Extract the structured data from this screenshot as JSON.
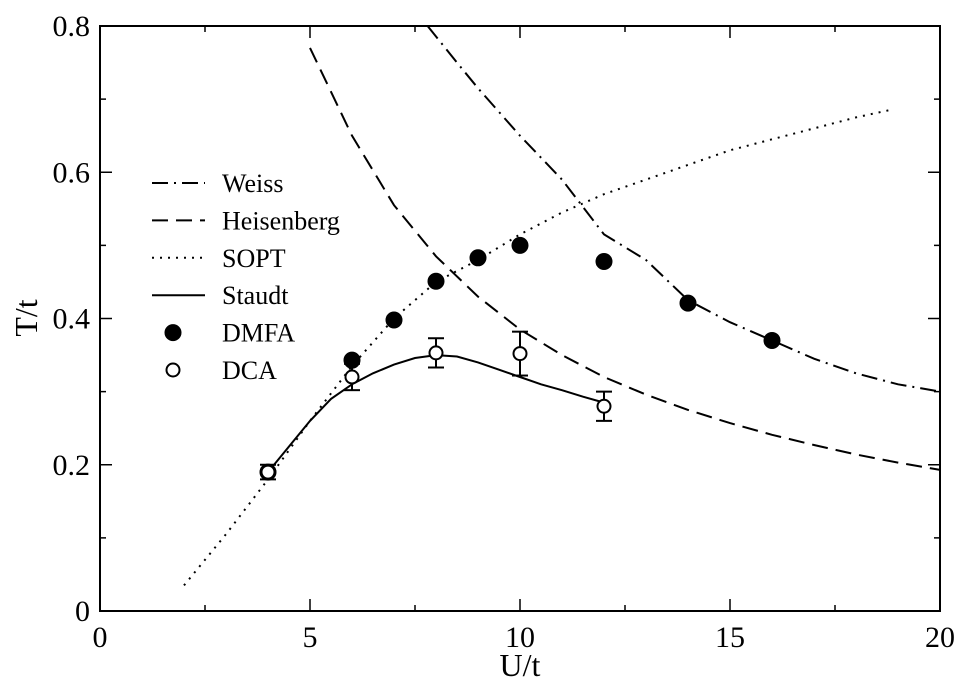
{
  "chart_data": {
    "type": "scatter",
    "xlabel": "U/t",
    "ylabel": "T/t",
    "xlim": [
      0,
      20
    ],
    "ylim": [
      0,
      0.8
    ],
    "x_ticks": [
      0,
      5,
      10,
      15,
      20
    ],
    "y_ticks": [
      0,
      0.2,
      0.4,
      0.6,
      0.8
    ],
    "x_tick_labels": [
      "0",
      "5",
      "10",
      "15",
      "20"
    ],
    "y_tick_labels": [
      "0",
      "0.2",
      "0.4",
      "0.6",
      "0.8"
    ],
    "grid": false,
    "legend_position": "left",
    "series": [
      {
        "name": "Weiss",
        "kind": "line",
        "dash": "dash-dot",
        "x": [
          7.8,
          8.5,
          9,
          10,
          11,
          12,
          13,
          14,
          15,
          16,
          17,
          18,
          19,
          20
        ],
        "y": [
          0.8,
          0.75,
          0.715,
          0.65,
          0.59,
          0.515,
          0.48,
          0.425,
          0.395,
          0.37,
          0.345,
          0.325,
          0.31,
          0.3
        ]
      },
      {
        "name": "Heisenberg",
        "kind": "line",
        "dash": "dashed",
        "x": [
          5,
          6,
          7,
          8,
          9,
          10,
          11,
          12,
          13,
          14,
          15,
          16,
          17,
          18,
          19,
          20
        ],
        "y": [
          0.77,
          0.65,
          0.555,
          0.485,
          0.43,
          0.385,
          0.35,
          0.32,
          0.296,
          0.275,
          0.257,
          0.241,
          0.227,
          0.214,
          0.203,
          0.193
        ]
      },
      {
        "name": "SOPT",
        "kind": "line",
        "dash": "dotted",
        "x": [
          2,
          3,
          4,
          5,
          6,
          7,
          8,
          9,
          10,
          11,
          12,
          13,
          14,
          15,
          16,
          17,
          18,
          18.8
        ],
        "y": [
          0.035,
          0.105,
          0.18,
          0.26,
          0.335,
          0.4,
          0.45,
          0.48,
          0.515,
          0.545,
          0.57,
          0.59,
          0.61,
          0.63,
          0.645,
          0.66,
          0.675,
          0.685
        ]
      },
      {
        "name": "Staudt",
        "kind": "line",
        "dash": "solid",
        "x": [
          4,
          4.5,
          5,
          5.5,
          6,
          6.5,
          7,
          7.5,
          8,
          8.5,
          9,
          9.5,
          10,
          10.5,
          11,
          11.5,
          12
        ],
        "y": [
          0.19,
          0.225,
          0.26,
          0.29,
          0.31,
          0.325,
          0.337,
          0.346,
          0.35,
          0.348,
          0.34,
          0.33,
          0.32,
          0.31,
          0.302,
          0.293,
          0.285
        ]
      },
      {
        "name": "DMFA",
        "kind": "marker",
        "marker": "filled-circle",
        "x": [
          4,
          6,
          7,
          8,
          9,
          10,
          12,
          14,
          16
        ],
        "y": [
          0.19,
          0.343,
          0.398,
          0.451,
          0.483,
          0.5,
          0.478,
          0.421,
          0.37
        ]
      },
      {
        "name": "DCA",
        "kind": "marker",
        "marker": "open-circle",
        "x": [
          4,
          6,
          8,
          10,
          12
        ],
        "y": [
          0.19,
          0.32,
          0.353,
          0.352,
          0.28
        ],
        "yerr": [
          0.01,
          0.018,
          0.02,
          0.03,
          0.02
        ]
      }
    ]
  }
}
